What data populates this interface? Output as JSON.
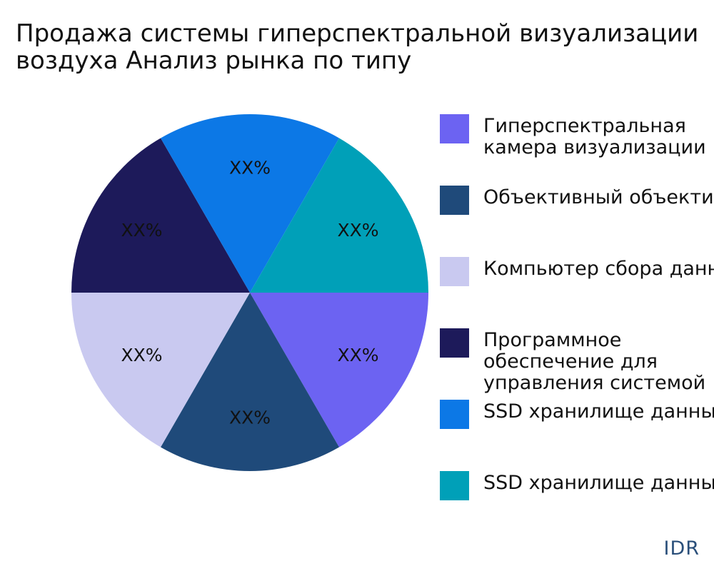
{
  "chart_data": {
    "type": "pie",
    "title_lines": [
      "Продажа системы гиперспектральной визуализации",
      "воздуха Анализ рынка по типу"
    ],
    "slices": [
      {
        "name": [
          "Гиперспектральная",
          "камера визуализации"
        ],
        "value": 16.67,
        "label": "XX%",
        "color": "#6c63f2"
      },
      {
        "name": [
          "Объективный объектив"
        ],
        "value": 16.67,
        "label": "XX%",
        "color": "#1f4a7a"
      },
      {
        "name": [
          "Компьютер сбора данных"
        ],
        "value": 16.67,
        "label": "XX%",
        "color": "#c9c9f0"
      },
      {
        "name": [
          "Программное",
          "обеспечение для",
          "управления системой"
        ],
        "value": 16.67,
        "label": "XX%",
        "color": "#1d1a5a"
      },
      {
        "name": [
          "SSD хранилище данных"
        ],
        "value": 16.67,
        "label": "XX%",
        "color": "#0c78e6"
      },
      {
        "name": [
          "SSD хранилище данных"
        ],
        "value": 16.67,
        "label": "XX%",
        "color": "#00a0b8"
      }
    ],
    "start_angle_deg": 0,
    "direction": "clockwise",
    "legend_position": "right"
  },
  "brand": "IDR"
}
